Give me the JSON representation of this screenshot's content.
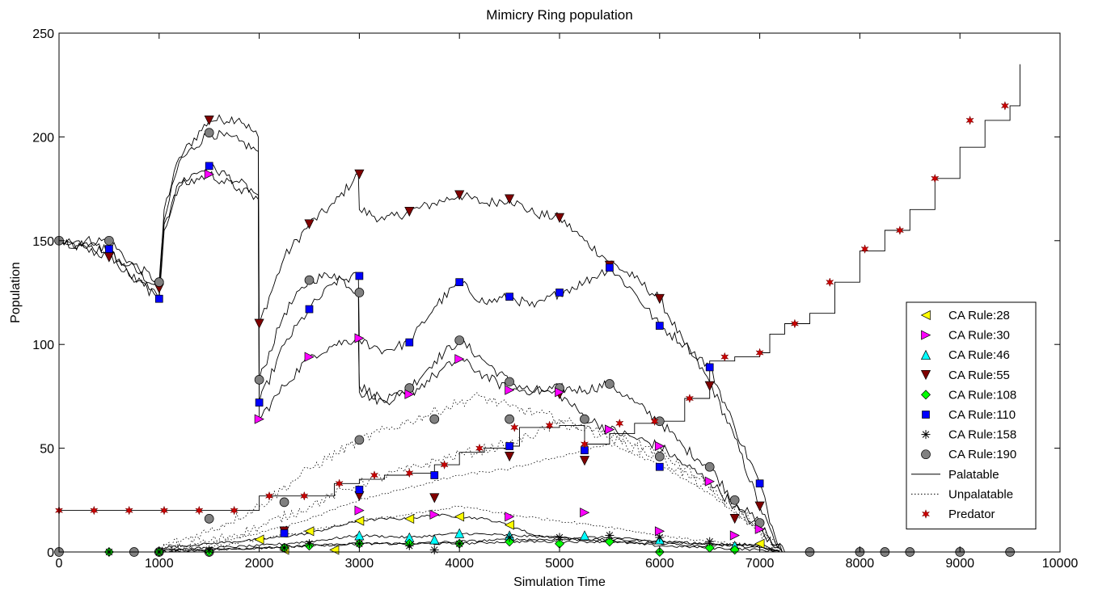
{
  "chart_data": {
    "type": "line",
    "title": "Mimicry Ring population",
    "xlabel": "Simulation Time",
    "ylabel": "Population",
    "xlim": [
      0,
      10000
    ],
    "ylim": [
      0,
      250
    ],
    "xticks": [
      "0",
      "1000",
      "2000",
      "3000",
      "4000",
      "5000",
      "6000",
      "7000",
      "8000",
      "9000",
      "10000"
    ],
    "yticks": [
      "0",
      "50",
      "100",
      "150",
      "200",
      "250"
    ],
    "grid": false,
    "legend_position": "right",
    "legend": [
      {
        "label": "CA Rule:28",
        "marker": "triangle-left",
        "color": "#ffff00"
      },
      {
        "label": "CA Rule:30",
        "marker": "triangle-right",
        "color": "#ff00ff"
      },
      {
        "label": "CA Rule:46",
        "marker": "triangle-up",
        "color": "#00ffff"
      },
      {
        "label": "CA Rule:55",
        "marker": "triangle-down",
        "color": "#800000"
      },
      {
        "label": "CA Rule:108",
        "marker": "diamond",
        "color": "#00ff00"
      },
      {
        "label": "CA Rule:110",
        "marker": "square",
        "color": "#0000ff"
      },
      {
        "label": "CA Rule:158",
        "marker": "asterisk",
        "color": "#000000"
      },
      {
        "label": "CA Rule:190",
        "marker": "circle",
        "color": "#808080"
      },
      {
        "label": "Palatable",
        "marker": "line-solid",
        "color": "#000000"
      },
      {
        "label": "Unpalatable",
        "marker": "line-dotted",
        "color": "#000000"
      },
      {
        "label": "Predator",
        "marker": "star",
        "color": "#cc0000"
      }
    ],
    "series": [
      {
        "key": "rule55",
        "style": "solid",
        "x": [
          0,
          500,
          700,
          1000,
          1050,
          1200,
          1500,
          1800,
          1990,
          2000,
          2250,
          2500,
          2750,
          2990,
          3000,
          3250,
          3500,
          3750,
          4000,
          4250,
          4500,
          4750,
          5000,
          5250,
          5500,
          5750,
          6000,
          6250,
          6500,
          6750,
          7000,
          7150,
          7250
        ],
        "y": [
          150,
          142,
          138,
          127,
          165,
          190,
          208,
          209,
          200,
          110,
          142,
          158,
          168,
          182,
          165,
          160,
          164,
          168,
          172,
          168,
          170,
          163,
          161,
          150,
          140,
          132,
          122,
          100,
          82,
          55,
          22,
          5,
          0
        ]
      },
      {
        "key": "rule190",
        "style": "solid",
        "x": [
          0,
          500,
          700,
          1000,
          1050,
          1200,
          1500,
          1800,
          1990,
          2000,
          2250,
          2500,
          2750,
          2990,
          3000,
          3250,
          3500,
          3750,
          4000,
          4250,
          4500,
          4750,
          5000,
          5250,
          5500,
          5750,
          6000,
          6250,
          6500,
          6750,
          7000,
          7150,
          7250
        ],
        "y": [
          150,
          150,
          140,
          130,
          160,
          188,
          202,
          198,
          193,
          83,
          115,
          131,
          134,
          125,
          77,
          72,
          79,
          92,
          102,
          92,
          82,
          77,
          79,
          78,
          81,
          72,
          63,
          50,
          41,
          24,
          14,
          3,
          0
        ]
      },
      {
        "key": "rule110",
        "style": "solid",
        "x": [
          0,
          500,
          700,
          1000,
          1050,
          1200,
          1500,
          1800,
          1990,
          2000,
          2250,
          2500,
          2750,
          2990,
          3000,
          3250,
          3500,
          3750,
          4000,
          4250,
          4500,
          4750,
          5000,
          5250,
          5500,
          5750,
          6000,
          6250,
          6500,
          6750,
          7000,
          7150,
          7250
        ],
        "y": [
          150,
          146,
          134,
          122,
          155,
          178,
          186,
          178,
          172,
          72,
          100,
          117,
          130,
          133,
          102,
          97,
          101,
          118,
          130,
          120,
          123,
          118,
          125,
          130,
          137,
          125,
          109,
          100,
          89,
          60,
          33,
          8,
          0
        ]
      },
      {
        "key": "rule30",
        "style": "solid",
        "x": [
          0,
          500,
          700,
          1000,
          1050,
          1200,
          1500,
          1800,
          1990,
          2000,
          2250,
          2500,
          2750,
          2990,
          3000,
          3250,
          3500,
          3750,
          4000,
          4250,
          4500,
          4750,
          5000,
          5250,
          5500,
          5750,
          6000,
          6250,
          6500,
          6750,
          7000,
          7150,
          7250
        ],
        "y": [
          150,
          145,
          133,
          124,
          158,
          176,
          182,
          175,
          170,
          64,
          80,
          94,
          100,
          103,
          80,
          73,
          76,
          85,
          93,
          85,
          78,
          78,
          76,
          65,
          59,
          55,
          51,
          42,
          34,
          22,
          11,
          2,
          0
        ]
      },
      {
        "key": "rule28",
        "style": "solid",
        "x": [
          1000,
          1500,
          2000,
          2500,
          3000,
          3250,
          3500,
          3750,
          4000,
          4250,
          4500,
          4750,
          5000,
          5250,
          5500,
          6000,
          6500,
          7000,
          7200
        ],
        "y": [
          2,
          4,
          6,
          9,
          15,
          16,
          16,
          18,
          17,
          16,
          13,
          8,
          7,
          6,
          5,
          4,
          3,
          4,
          0
        ]
      },
      {
        "key": "rule46",
        "style": "solid",
        "x": [
          1000,
          1500,
          2000,
          2500,
          3000,
          3500,
          4000,
          4500,
          5000,
          5500,
          6000,
          6500,
          7000,
          7200
        ],
        "y": [
          1,
          2,
          3,
          5,
          8,
          7,
          9,
          8,
          7,
          7,
          5,
          4,
          3,
          0
        ]
      },
      {
        "key": "rule108",
        "style": "solid",
        "x": [
          1000,
          1500,
          2000,
          2500,
          3000,
          3500,
          4000,
          4500,
          5000,
          5500,
          6000,
          6500,
          7000,
          7200
        ],
        "y": [
          0,
          1,
          2,
          3,
          4,
          4,
          4,
          5,
          5,
          5,
          3,
          2,
          1,
          0
        ]
      },
      {
        "key": "rule158",
        "style": "solid",
        "x": [
          1000,
          1500,
          2000,
          2500,
          3000,
          3500,
          4000,
          4500,
          5000,
          5500,
          6000,
          6500,
          7000,
          7200
        ],
        "y": [
          1,
          1,
          2,
          3,
          4,
          4,
          5,
          6,
          6,
          6,
          5,
          4,
          2,
          0
        ]
      },
      {
        "key": "unpal-1",
        "style": "dotted",
        "x": [
          1000,
          1500,
          2000,
          2500,
          3000,
          3500,
          4000,
          4200,
          4500,
          5000,
          5500,
          6000,
          6500,
          7000,
          7200
        ],
        "y": [
          2,
          10,
          22,
          40,
          54,
          63,
          72,
          75,
          70,
          64,
          55,
          45,
          30,
          10,
          0
        ]
      },
      {
        "key": "unpal-2",
        "style": "dotted",
        "x": [
          1000,
          1500,
          2000,
          2500,
          3000,
          3500,
          4000,
          4500,
          5000,
          5500,
          6000,
          6500,
          7000,
          7200
        ],
        "y": [
          1,
          5,
          12,
          22,
          33,
          40,
          47,
          52,
          62,
          57,
          48,
          32,
          12,
          0
        ]
      },
      {
        "key": "unpal-3",
        "style": "dotted",
        "x": [
          1000,
          1500,
          2000,
          2500,
          3000,
          3500,
          4000,
          4500,
          5000,
          5500,
          6000,
          6500,
          7000,
          7200
        ],
        "y": [
          1,
          4,
          9,
          16,
          25,
          31,
          37,
          40,
          46,
          52,
          42,
          28,
          10,
          0
        ]
      },
      {
        "key": "unpal-4",
        "style": "dotted",
        "x": [
          1000,
          1500,
          2000,
          2500,
          3000,
          3500,
          4000,
          4500,
          5000,
          5500,
          6000,
          6500,
          7000,
          7200
        ],
        "y": [
          0,
          2,
          6,
          10,
          15,
          18,
          22,
          18,
          15,
          12,
          8,
          5,
          3,
          0
        ]
      },
      {
        "key": "predator",
        "style": "solid",
        "step": true,
        "x": [
          0,
          2000,
          2100,
          2500,
          2750,
          3000,
          3250,
          3500,
          3750,
          4000,
          4250,
          4500,
          4600,
          5000,
          5250,
          5500,
          5750,
          6000,
          6250,
          6500,
          6750,
          7000,
          7100,
          7250,
          7500,
          7750,
          8000,
          8250,
          8500,
          8750,
          9000,
          9250,
          9500,
          9600
        ],
        "y": [
          20,
          27,
          27,
          27,
          33,
          35,
          37,
          38,
          42,
          48,
          50,
          51,
          60,
          61,
          52,
          57,
          62,
          63,
          74,
          92,
          94,
          96,
          105,
          110,
          115,
          130,
          145,
          155,
          165,
          180,
          195,
          208,
          215,
          235
        ]
      }
    ],
    "markers": [
      {
        "key": "rule55",
        "shape": "triangle-down",
        "color": "#800000",
        "x": [
          500,
          1000,
          1500,
          2000,
          2500,
          3000,
          3500,
          4000,
          4500,
          5000,
          5500,
          6000,
          6500,
          6750,
          7000,
          2250,
          3000,
          3750,
          4500,
          5250,
          5000
        ],
        "y": [
          142,
          127,
          208,
          110,
          158,
          182,
          164,
          172,
          170,
          161,
          138,
          122,
          80,
          16,
          22,
          10,
          27,
          26,
          46,
          44,
          76
        ]
      },
      {
        "key": "rule190",
        "shape": "circle",
        "color": "#808080",
        "x": [
          0,
          500,
          1000,
          1500,
          2000,
          2500,
          3000,
          3500,
          4000,
          4500,
          5000,
          5500,
          6000,
          6500,
          6750,
          7000,
          2250,
          1500,
          3000,
          3750,
          4500,
          5250,
          6000,
          0,
          750,
          1000,
          1500,
          7500,
          8000,
          8250,
          8500,
          9000,
          9500
        ],
        "y": [
          150,
          150,
          130,
          202,
          83,
          131,
          125,
          79,
          102,
          82,
          79,
          81,
          63,
          41,
          25,
          14,
          24,
          16,
          54,
          64,
          64,
          64,
          46,
          0,
          0,
          0,
          0,
          0,
          0,
          0,
          0,
          0,
          0
        ]
      },
      {
        "key": "rule110",
        "shape": "square",
        "color": "#0000ff",
        "x": [
          500,
          1000,
          1500,
          2000,
          2500,
          3000,
          3500,
          4000,
          4500,
          5000,
          5500,
          6000,
          6500,
          7000,
          2250,
          3000,
          3750,
          4500,
          5250,
          6000
        ],
        "y": [
          146,
          122,
          186,
          72,
          117,
          133,
          101,
          130,
          123,
          125,
          137,
          109,
          89,
          33,
          9,
          30,
          37,
          51,
          49,
          41
        ]
      },
      {
        "key": "rule30",
        "shape": "triangle-right",
        "color": "#ff00ff",
        "x": [
          1500,
          2000,
          2500,
          3000,
          3500,
          4000,
          4500,
          5000,
          5500,
          6000,
          6500,
          7000,
          3000,
          3750,
          4500,
          5250,
          6000,
          6750
        ],
        "y": [
          182,
          64,
          94,
          103,
          76,
          93,
          78,
          77,
          59,
          51,
          34,
          11,
          20,
          18,
          17,
          19,
          10,
          8
        ]
      },
      {
        "key": "rule28",
        "shape": "triangle-left",
        "color": "#ffff00",
        "x": [
          2000,
          2500,
          3000,
          3500,
          4000,
          4500,
          7000,
          2250,
          2750
        ],
        "y": [
          6,
          10,
          15,
          16,
          17,
          13,
          4,
          1,
          1
        ]
      },
      {
        "key": "rule46",
        "shape": "triangle-up",
        "color": "#00ffff",
        "x": [
          3000,
          3500,
          3750,
          4000,
          4500,
          5250,
          6000,
          6750
        ],
        "y": [
          8,
          7,
          6,
          9,
          8,
          8,
          6,
          3
        ]
      },
      {
        "key": "rule108",
        "shape": "diamond",
        "color": "#00ff00",
        "x": [
          500,
          1000,
          1500,
          2250,
          2500,
          3000,
          3500,
          4000,
          4500,
          5000,
          5500,
          6000,
          6500,
          6750
        ],
        "y": [
          0,
          0,
          0,
          2,
          3,
          4,
          4,
          4,
          5,
          4,
          5,
          0,
          2,
          1
        ]
      },
      {
        "key": "rule158",
        "shape": "asterisk",
        "color": "#000000",
        "x": [
          500,
          1000,
          1500,
          2250,
          2500,
          3000,
          3500,
          3750,
          4000,
          4500,
          5000,
          5500,
          6000,
          6500
        ],
        "y": [
          0,
          0,
          1,
          2,
          4,
          4,
          3,
          1,
          4,
          7,
          7,
          8,
          7,
          5
        ]
      },
      {
        "key": "predator",
        "shape": "star",
        "color": "#cc0000",
        "x": [
          0,
          350,
          700,
          1050,
          1400,
          1750,
          2100,
          2450,
          2800,
          3150,
          3500,
          3850,
          4200,
          4550,
          4900,
          5250,
          5600,
          5950,
          6300,
          6650,
          7000,
          7350,
          7700,
          8050,
          8400,
          8750,
          9100,
          9450
        ],
        "y": [
          20,
          20,
          20,
          20,
          20,
          20,
          27,
          27,
          33,
          37,
          38,
          42,
          50,
          60,
          61,
          52,
          62,
          63,
          74,
          94,
          96,
          110,
          130,
          146,
          155,
          180,
          208,
          215
        ]
      }
    ]
  }
}
